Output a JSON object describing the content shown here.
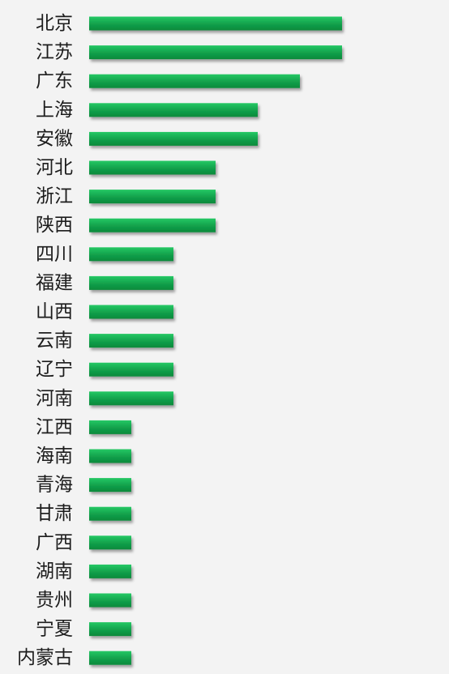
{
  "chart_data": {
    "type": "bar",
    "orientation": "horizontal",
    "categories": [
      "北京",
      "江苏",
      "广东",
      "上海",
      "安徽",
      "河北",
      "浙江",
      "陕西",
      "四川",
      "福建",
      "山西",
      "云南",
      "辽宁",
      "河南",
      "江西",
      "海南",
      "青海",
      "甘肃",
      "广西",
      "湖南",
      "贵州",
      "宁夏",
      "内蒙古"
    ],
    "values": [
      6,
      6,
      5,
      4,
      4,
      3,
      3,
      3,
      2,
      2,
      2,
      2,
      2,
      2,
      1,
      1,
      1,
      1,
      1,
      1,
      1,
      1,
      1
    ],
    "axis_visible": false,
    "grid": false,
    "legend": "none",
    "bar_color": "#13a24d"
  }
}
